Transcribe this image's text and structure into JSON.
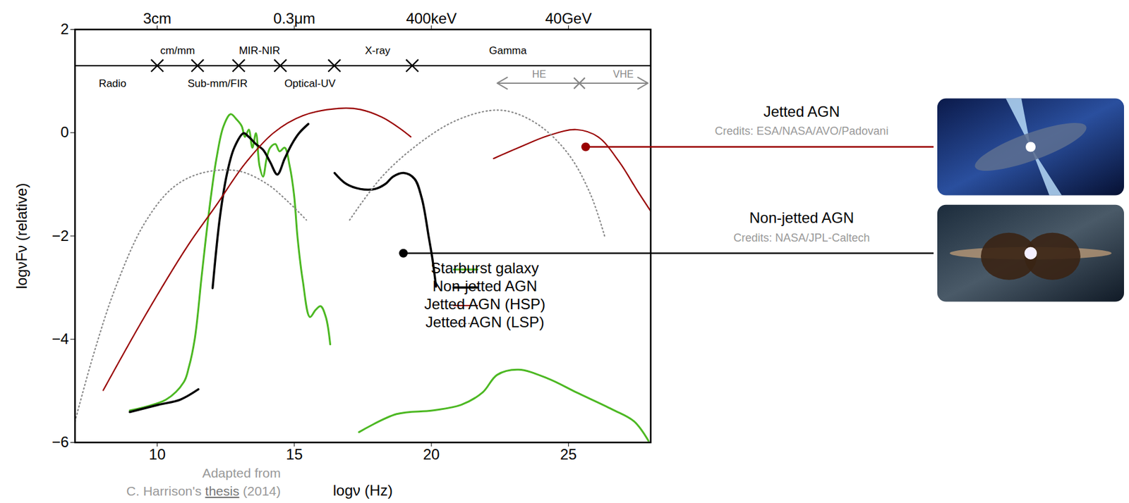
{
  "chart_data": {
    "type": "line",
    "xlabel": "logν (Hz)",
    "ylabel": "logνFν (relative)",
    "xlim": [
      7,
      28
    ],
    "ylim": [
      -6,
      2
    ],
    "xticks": [
      10,
      15,
      20,
      25
    ],
    "top_xticks": [
      {
        "value": 10,
        "label": "3cm"
      },
      {
        "value": 15,
        "label": "0.3μm"
      },
      {
        "value": 20,
        "label": "400keV"
      },
      {
        "value": 25,
        "label": "40GeV"
      }
    ],
    "yticks": [
      -6,
      -4,
      -2,
      0,
      2
    ],
    "grid": false,
    "legend": "center",
    "bands": {
      "line_y": 1.3,
      "edges": [
        10,
        11.47,
        12.97,
        14.49,
        16.46,
        19.3
      ],
      "labels": [
        {
          "text": "Radio",
          "x": 8.37,
          "y": 0.95
        },
        {
          "text": "cm/mm",
          "x": 10.74,
          "y": 1.59
        },
        {
          "text": "Sub-mm/FIR",
          "x": 12.2,
          "y": 0.95
        },
        {
          "text": "MIR-NIR",
          "x": 13.73,
          "y": 1.59
        },
        {
          "text": "Optical-UV",
          "x": 15.57,
          "y": 0.95
        },
        {
          "text": "X-ray",
          "x": 18.04,
          "y": 1.59
        },
        {
          "text": "Gamma",
          "x": 22.79,
          "y": 1.59
        }
      ],
      "gamma_ranges": [
        {
          "label": "HE",
          "from": 25.4,
          "to": 22.4,
          "label_x": 23.93
        },
        {
          "label": "VHE",
          "from": 25.4,
          "to": 27.9,
          "label_x": 27.0
        }
      ],
      "gamma_range_y": 0.96,
      "gamma_label_y": 1.13
    },
    "series": [
      {
        "name": "Starburst galaxy",
        "color": "#4cb822",
        "line_style": "solid",
        "x": [
          9.0,
          10.32,
          10.97,
          11.15,
          11.37,
          11.63,
          11.9,
          12.16,
          12.42,
          12.68,
          12.89,
          13.08,
          13.2,
          13.34,
          13.47,
          13.6,
          13.73,
          13.86,
          13.99,
          14.12,
          14.31,
          14.46,
          14.65,
          14.83,
          14.99,
          15.12,
          15.31,
          15.57,
          15.78,
          15.96,
          16.15,
          16.31,
          null,
          17.36,
          18.73,
          20.04,
          21.09,
          21.87,
          22.4,
          23.18,
          24.24,
          25.29,
          26.6,
          27.39,
          27.92
        ],
        "y": [
          -5.38,
          -5.17,
          -4.83,
          -4.55,
          -3.99,
          -2.73,
          -1.48,
          -0.5,
          0.13,
          0.36,
          0.26,
          0.13,
          -0.08,
          0.06,
          -0.29,
          -0.01,
          -0.64,
          -0.85,
          -0.5,
          -0.29,
          -0.22,
          -0.36,
          -0.29,
          -0.64,
          -1.2,
          -2.04,
          -2.87,
          -3.57,
          -3.43,
          -3.36,
          -3.57,
          -4.1,
          null,
          -5.8,
          -5.45,
          -5.38,
          -5.27,
          -5.03,
          -4.69,
          -4.59,
          -4.76,
          -5.03,
          -5.36,
          -5.59,
          -5.97
        ]
      },
      {
        "name": "Non-jetted AGN",
        "color": "#000000",
        "line_style": "solid",
        "x": [
          9.0,
          10.05,
          10.84,
          11.5,
          null,
          12.02,
          12.29,
          12.55,
          12.81,
          13.15,
          13.34,
          13.6,
          13.86,
          14.12,
          14.38,
          14.65,
          14.91,
          15.17,
          15.51,
          null,
          16.47,
          16.89,
          17.41,
          17.94,
          18.33,
          18.6,
          18.99,
          19.38,
          19.65,
          19.91,
          20.04,
          20.17
        ],
        "y": [
          -5.41,
          -5.27,
          -5.17,
          -4.97,
          null,
          -3.01,
          -1.62,
          -0.78,
          -0.29,
          -0.01,
          -0.08,
          -0.22,
          -0.33,
          -0.57,
          -0.81,
          -0.5,
          -0.22,
          -0.01,
          0.17,
          null,
          -0.78,
          -0.99,
          -1.09,
          -1.09,
          -0.99,
          -0.85,
          -0.78,
          -0.89,
          -1.27,
          -2.04,
          -2.45,
          -2.98
        ]
      },
      {
        "name": "Jetted AGN (HSP)",
        "color": "#990000",
        "line_style": "solid",
        "x": [
          8.03,
          9.53,
          11.1,
          12.16,
          13.2,
          14.25,
          15.31,
          16.62,
          17.41,
          18.2,
          18.86,
          19.25,
          null,
          22.27,
          23.18,
          24.24,
          25.29,
          26.08,
          26.86,
          27.52,
          27.99
        ],
        "y": [
          -4.99,
          -3.57,
          -2.2,
          -1.4,
          -0.6,
          0.0,
          0.33,
          0.47,
          0.45,
          0.3,
          0.08,
          -0.08,
          null,
          -0.5,
          -0.29,
          -0.06,
          0.06,
          -0.08,
          -0.57,
          -1.13,
          -1.51
        ]
      },
      {
        "name": "Jetted AGN (LSP)",
        "color": "#888888",
        "line_style": "dotted",
        "x": [
          7.0,
          7.69,
          8.47,
          9.53,
          10.58,
          11.63,
          12.95,
          14.0,
          14.78,
          15.44,
          null,
          17.02,
          18.2,
          19.52,
          20.83,
          22.14,
          22.93,
          23.97,
          25.02,
          25.81,
          26.34
        ],
        "y": [
          -5.59,
          -4.27,
          -3.01,
          -1.76,
          -1.06,
          -0.78,
          -0.74,
          -0.99,
          -1.34,
          -1.69,
          null,
          -1.69,
          -0.85,
          -0.22,
          0.22,
          0.43,
          0.4,
          0.13,
          -0.43,
          -1.2,
          -2.04
        ]
      }
    ],
    "callouts": [
      {
        "label": "Jetted AGN",
        "credit": "Credits: ESA/NASA/AVO/Padovani",
        "x": 25.64,
        "y": -0.28,
        "color": "#990000"
      },
      {
        "label": "Non-jetted AGN",
        "credit": "Credits: NASA/JPL-Caltech",
        "x": 18.99,
        "y": -2.34,
        "color": "#000000"
      }
    ],
    "source": [
      "Adapted from",
      "C. Harrison's thesis (2014)"
    ],
    "source_link": "thesis"
  }
}
